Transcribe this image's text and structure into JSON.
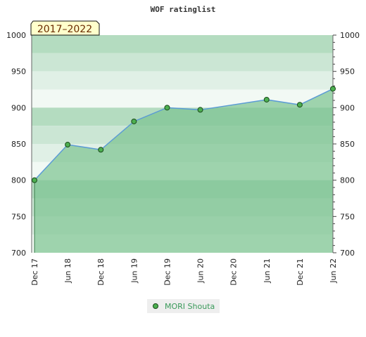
{
  "chart_data": {
    "type": "area",
    "title": "WOF ratinglist",
    "period_label": "2017–2022",
    "xlabel": "",
    "ylabel": "",
    "ylim": [
      700,
      1000
    ],
    "yticks": [
      700,
      750,
      800,
      850,
      900,
      950,
      1000
    ],
    "x_tick_labels": [
      "Dec 17",
      "Jun 18",
      "Dec 18",
      "Jun 19",
      "Dec 19",
      "Jun 20",
      "Dec 20",
      "Jun 21",
      "Dec 21",
      "Jun 22"
    ],
    "grid": true,
    "legend_position": "bottom-center",
    "series": [
      {
        "name": "MORI Shouta",
        "x": [
          "Dec 17",
          "Jun 18",
          "Dec 18",
          "Jun 19",
          "Dec 19",
          "Jun 20",
          "Dec 20",
          "Jun 21",
          "Dec 21",
          "Jun 22"
        ],
        "values": [
          800,
          849,
          842,
          881,
          900,
          897,
          null,
          911,
          904,
          926
        ]
      }
    ],
    "colors": {
      "line": "#5b9bd5",
      "fill": "#7dc491",
      "marker": "#4caf50",
      "badge_bg": "#ffffcc"
    }
  }
}
